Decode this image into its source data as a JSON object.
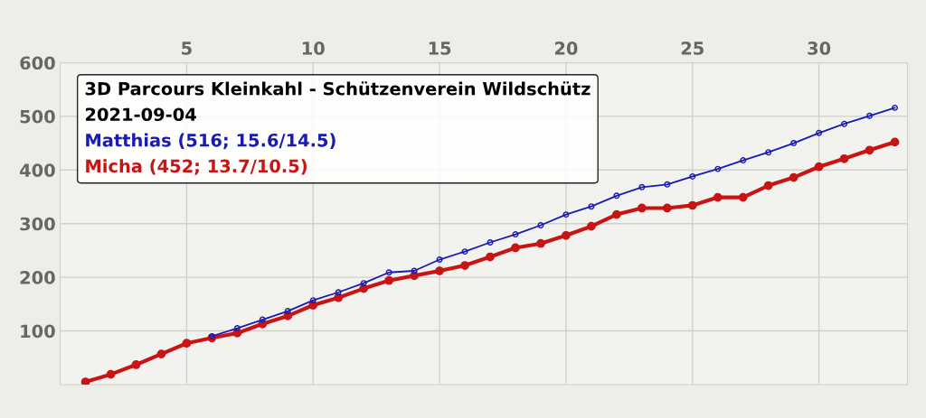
{
  "chart_data": {
    "type": "line",
    "title": "3D Parcours Kleinkahl - Schützenverein Wildschütz",
    "subtitle": "2021-09-04",
    "x": [
      1,
      2,
      3,
      4,
      5,
      6,
      7,
      8,
      9,
      10,
      11,
      12,
      13,
      14,
      15,
      16,
      17,
      18,
      19,
      20,
      21,
      22,
      23,
      24,
      25,
      26,
      27,
      28,
      29,
      30,
      31,
      32,
      33
    ],
    "series": [
      {
        "name": "Matthias (516; 15.6/14.5)",
        "color": "#1a1ab4",
        "values": [
          null,
          null,
          null,
          null,
          null,
          90,
          105,
          121,
          137,
          157,
          172,
          189,
          209,
          212,
          233,
          248,
          265,
          280,
          297,
          317,
          332,
          352,
          368,
          373,
          388,
          402,
          418,
          433,
          450,
          469,
          486,
          501,
          516
        ]
      },
      {
        "name": "Micha (452; 13.7/10.5)",
        "color": "#c81414",
        "values": [
          5,
          19,
          37,
          57,
          77,
          87,
          96,
          113,
          128,
          148,
          162,
          179,
          194,
          203,
          212,
          222,
          238,
          255,
          263,
          278,
          295,
          317,
          329,
          329,
          334,
          349,
          349,
          371,
          386,
          406,
          421,
          437,
          452
        ]
      }
    ],
    "xlim": [
      0,
      33.5
    ],
    "xticks": [
      5,
      10,
      15,
      20,
      25,
      30
    ],
    "ylim": [
      0,
      600
    ],
    "yticks": [
      100,
      200,
      300,
      400,
      500,
      600
    ],
    "grid": true,
    "legend": "top left",
    "marker": "circle",
    "line_style": "solid"
  }
}
